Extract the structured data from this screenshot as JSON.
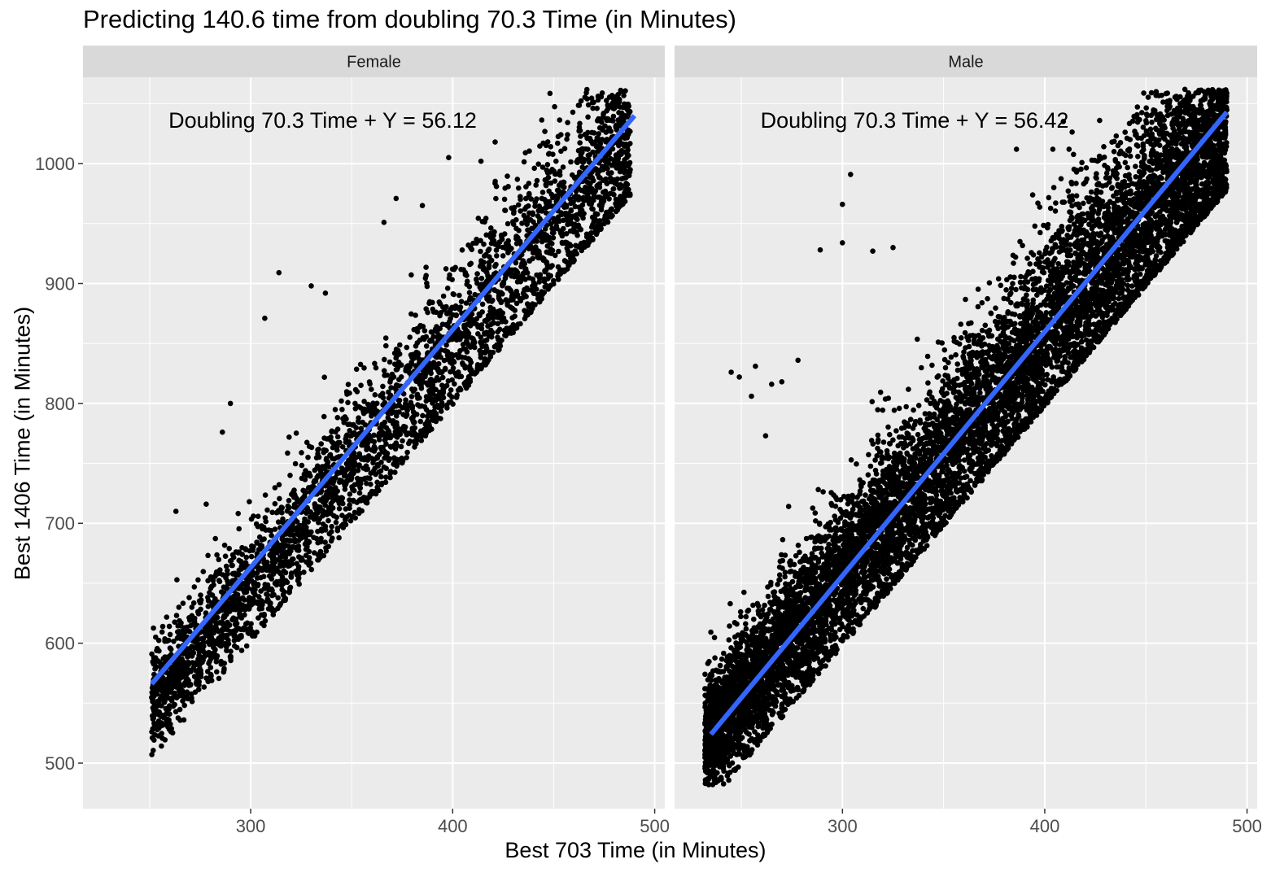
{
  "chart_data": {
    "type": "scatter",
    "title": "Predicting 140.6 time from doubling 70.3 Time (in Minutes)",
    "xlabel": "Best 703 Time (in Minutes)",
    "ylabel": "Best 1406 Time (in Minutes)",
    "xlim": [
      217,
      505
    ],
    "ylim": [
      462,
      1072
    ],
    "x_ticks": [
      300,
      400,
      500
    ],
    "y_ticks": [
      500,
      600,
      700,
      800,
      900,
      1000
    ],
    "grid": true,
    "legend": "none",
    "colors": {
      "points": "#000000",
      "fit_line": "#3366ff",
      "panel_bg": "#ebebeb",
      "strip_bg": "#d9d9d9",
      "grid": "#ffffff"
    },
    "panels": [
      {
        "label": "Female",
        "annotation": "Doubling 70.3 Time + Y = 56.12",
        "fit_line": {
          "x": [
            251,
            490
          ],
          "y": [
            566,
            1040
          ]
        },
        "scatter": {
          "x_range": [
            251,
            488
          ],
          "slope": 1.98,
          "intercept": 56.12,
          "spread": 35,
          "count": 3800
        },
        "outliers": [
          [
            307,
            871
          ],
          [
            314,
            909
          ],
          [
            290,
            800
          ],
          [
            263,
            710
          ],
          [
            278,
            716
          ],
          [
            261,
            552
          ],
          [
            255,
            541
          ],
          [
            286,
            776
          ],
          [
            330,
            898
          ],
          [
            337,
            892
          ],
          [
            366,
            951
          ],
          [
            372,
            971
          ],
          [
            385,
            965
          ],
          [
            398,
            1005
          ],
          [
            414,
            1002
          ],
          [
            421,
            1018
          ],
          [
            436,
            1009
          ],
          [
            482,
            1001
          ],
          [
            486,
            993
          ],
          [
            470,
            973
          ]
        ]
      },
      {
        "label": "Male",
        "annotation": "Doubling 70.3 Time + Y = 56.42",
        "fit_line": {
          "x": [
            235,
            490
          ],
          "y": [
            524,
            1043
          ]
        },
        "scatter": {
          "x_range": [
            232,
            490
          ],
          "slope": 2.0,
          "intercept": 56.42,
          "spread": 42,
          "count": 9500
        },
        "outliers": [
          [
            245,
            826
          ],
          [
            249,
            822
          ],
          [
            257,
            831
          ],
          [
            255,
            806
          ],
          [
            265,
            816
          ],
          [
            262,
            773
          ],
          [
            270,
            818
          ],
          [
            278,
            836
          ],
          [
            300,
            966
          ],
          [
            304,
            991
          ],
          [
            300,
            934
          ],
          [
            289,
            928
          ],
          [
            315,
            927
          ],
          [
            325,
            930
          ],
          [
            386,
            1012
          ],
          [
            404,
            1012
          ],
          [
            412,
            1012
          ],
          [
            446,
            1006
          ],
          [
            465,
            989
          ],
          [
            487,
            1005
          ],
          [
            484,
            986
          ],
          [
            253,
            525
          ],
          [
            240,
            488
          ],
          [
            236,
            500
          ]
        ]
      }
    ]
  }
}
